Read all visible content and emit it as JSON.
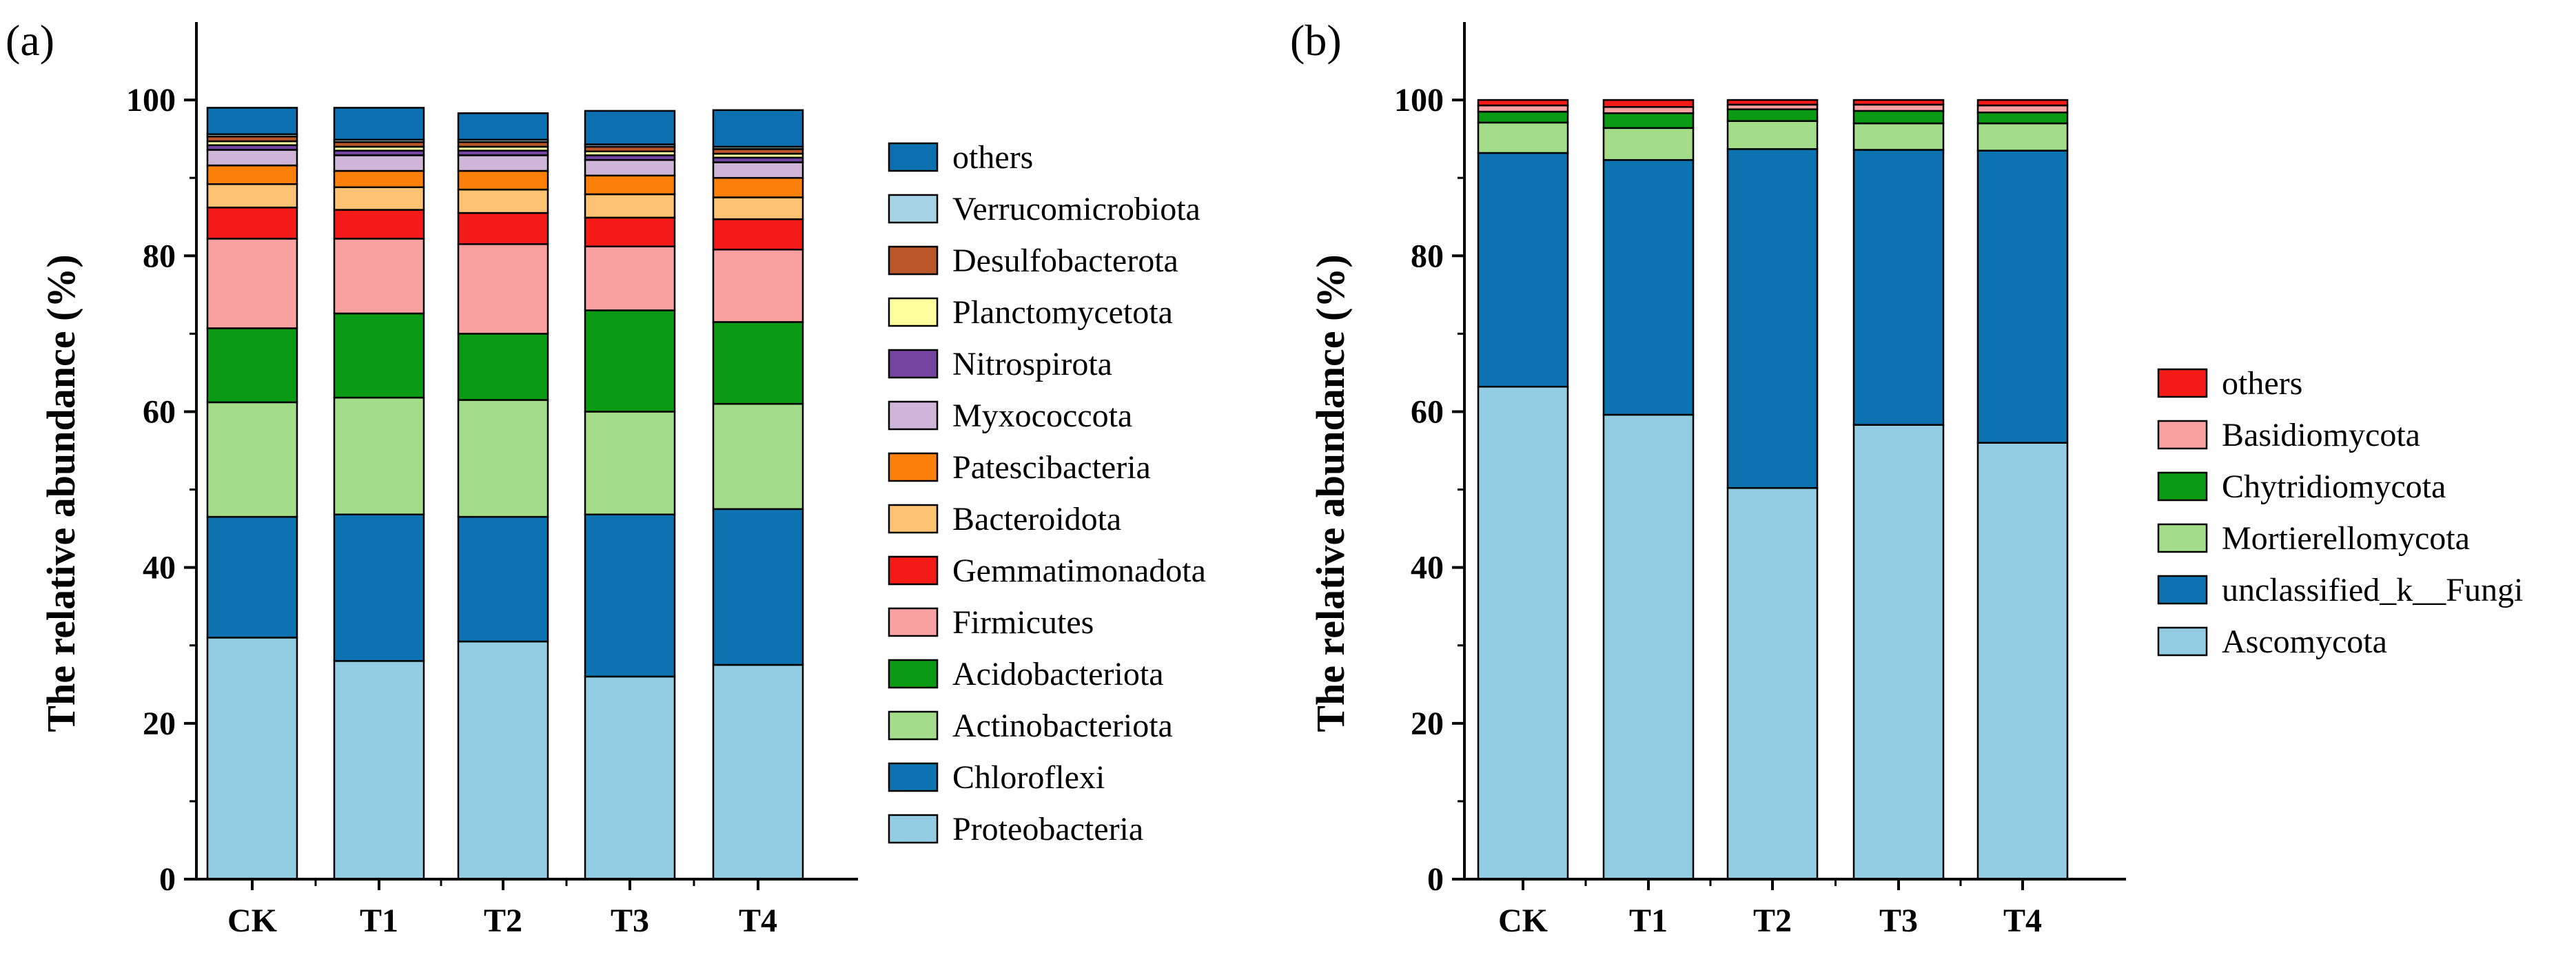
{
  "figure": {
    "panels": [
      "a",
      "b"
    ]
  },
  "chart_data": [
    {
      "panel": "(a)",
      "type": "bar",
      "stacked": true,
      "xlabel": "",
      "ylabel": "The relative abundance (%)",
      "ylim": [
        0,
        110
      ],
      "yticks": [
        0,
        20,
        40,
        60,
        80,
        100
      ],
      "categories": [
        "CK",
        "T1",
        "T2",
        "T3",
        "T4"
      ],
      "series": [
        {
          "name": "Proteobacteria",
          "color": "#93CDE3",
          "values": [
            31.0,
            28.0,
            30.5,
            26.0,
            27.5
          ]
        },
        {
          "name": "Chloroflexi",
          "color": "#0C72B0",
          "values": [
            15.5,
            18.8,
            16.0,
            20.8,
            20.0
          ]
        },
        {
          "name": "Actinobacteriota",
          "color": "#A3DD8A",
          "values": [
            14.7,
            15.0,
            15.0,
            13.2,
            13.5
          ]
        },
        {
          "name": "Acidobacteriota",
          "color": "#0A9A13",
          "values": [
            9.5,
            10.8,
            8.5,
            13.0,
            10.5
          ]
        },
        {
          "name": "Firmicutes",
          "color": "#F9A0A0",
          "values": [
            11.5,
            9.6,
            11.5,
            8.2,
            9.3
          ]
        },
        {
          "name": "Gemmatimonadota",
          "color": "#F41A18",
          "values": [
            4.0,
            3.7,
            4.0,
            3.7,
            3.9
          ]
        },
        {
          "name": "Bacteroidota",
          "color": "#FDC272",
          "values": [
            3.0,
            2.9,
            3.0,
            3.0,
            2.8
          ]
        },
        {
          "name": "Patescibacteria",
          "color": "#FC8009",
          "values": [
            2.4,
            2.1,
            2.4,
            2.4,
            2.5
          ]
        },
        {
          "name": "Myxococcota",
          "color": "#CFB6D8",
          "values": [
            2.0,
            2.0,
            2.0,
            2.0,
            2.0
          ]
        },
        {
          "name": "Nitrospirota",
          "color": "#7544A0",
          "values": [
            0.6,
            0.6,
            0.6,
            0.6,
            0.6
          ]
        },
        {
          "name": "Planctomycetota",
          "color": "#FEFE9E",
          "values": [
            0.5,
            0.5,
            0.5,
            0.5,
            0.5
          ]
        },
        {
          "name": "Desulfobacterota",
          "color": "#B9562A",
          "values": [
            0.6,
            0.6,
            0.6,
            0.6,
            0.6
          ]
        },
        {
          "name": "Verrucomicrobiota",
          "color": "#A6D4E6",
          "values": [
            0.3,
            0.3,
            0.3,
            0.3,
            0.3
          ]
        },
        {
          "name": "others",
          "color": "#0C6FB0",
          "values": [
            3.4,
            4.1,
            3.4,
            4.3,
            4.7
          ]
        }
      ],
      "legend_order": [
        "others",
        "Verrucomicrobiota",
        "Desulfobacterota",
        "Planctomycetota",
        "Nitrospirota",
        "Myxococcota",
        "Patescibacteria",
        "Bacteroidota",
        "Gemmatimonadota",
        "Firmicutes",
        "Acidobacteriota",
        "Actinobacteriota",
        "Chloroflexi",
        "Proteobacteria"
      ],
      "legend_placement": "right"
    },
    {
      "panel": "(b)",
      "type": "bar",
      "stacked": true,
      "xlabel": "",
      "ylabel": "The relative abundance (%)",
      "ylim": [
        0,
        110
      ],
      "yticks": [
        0,
        20,
        40,
        60,
        80,
        100
      ],
      "categories": [
        "CK",
        "T1",
        "T2",
        "T3",
        "T4"
      ],
      "series": [
        {
          "name": "Ascomycota",
          "color": "#93CDE3",
          "values": [
            63.2,
            59.6,
            50.2,
            58.3,
            56.0
          ]
        },
        {
          "name": "unclassified_k__Fungi",
          "color": "#0C72B0",
          "values": [
            30.0,
            32.7,
            43.5,
            35.3,
            37.5
          ]
        },
        {
          "name": "Mortierellomycota",
          "color": "#A3DD8A",
          "values": [
            3.9,
            4.1,
            3.6,
            3.4,
            3.5
          ]
        },
        {
          "name": "Chytridiomycota",
          "color": "#0A9A13",
          "values": [
            1.4,
            1.9,
            1.5,
            1.6,
            1.4
          ]
        },
        {
          "name": "Basidiomycota",
          "color": "#F9A0A0",
          "values": [
            0.8,
            0.8,
            0.6,
            0.8,
            0.9
          ]
        },
        {
          "name": "others",
          "color": "#F41A18",
          "values": [
            0.7,
            0.9,
            0.6,
            0.6,
            0.7
          ]
        }
      ],
      "legend_order": [
        "others",
        "Basidiomycota",
        "Chytridiomycota",
        "Mortierellomycota",
        "unclassified_k__Fungi",
        "Ascomycota"
      ],
      "legend_placement": "right"
    }
  ]
}
